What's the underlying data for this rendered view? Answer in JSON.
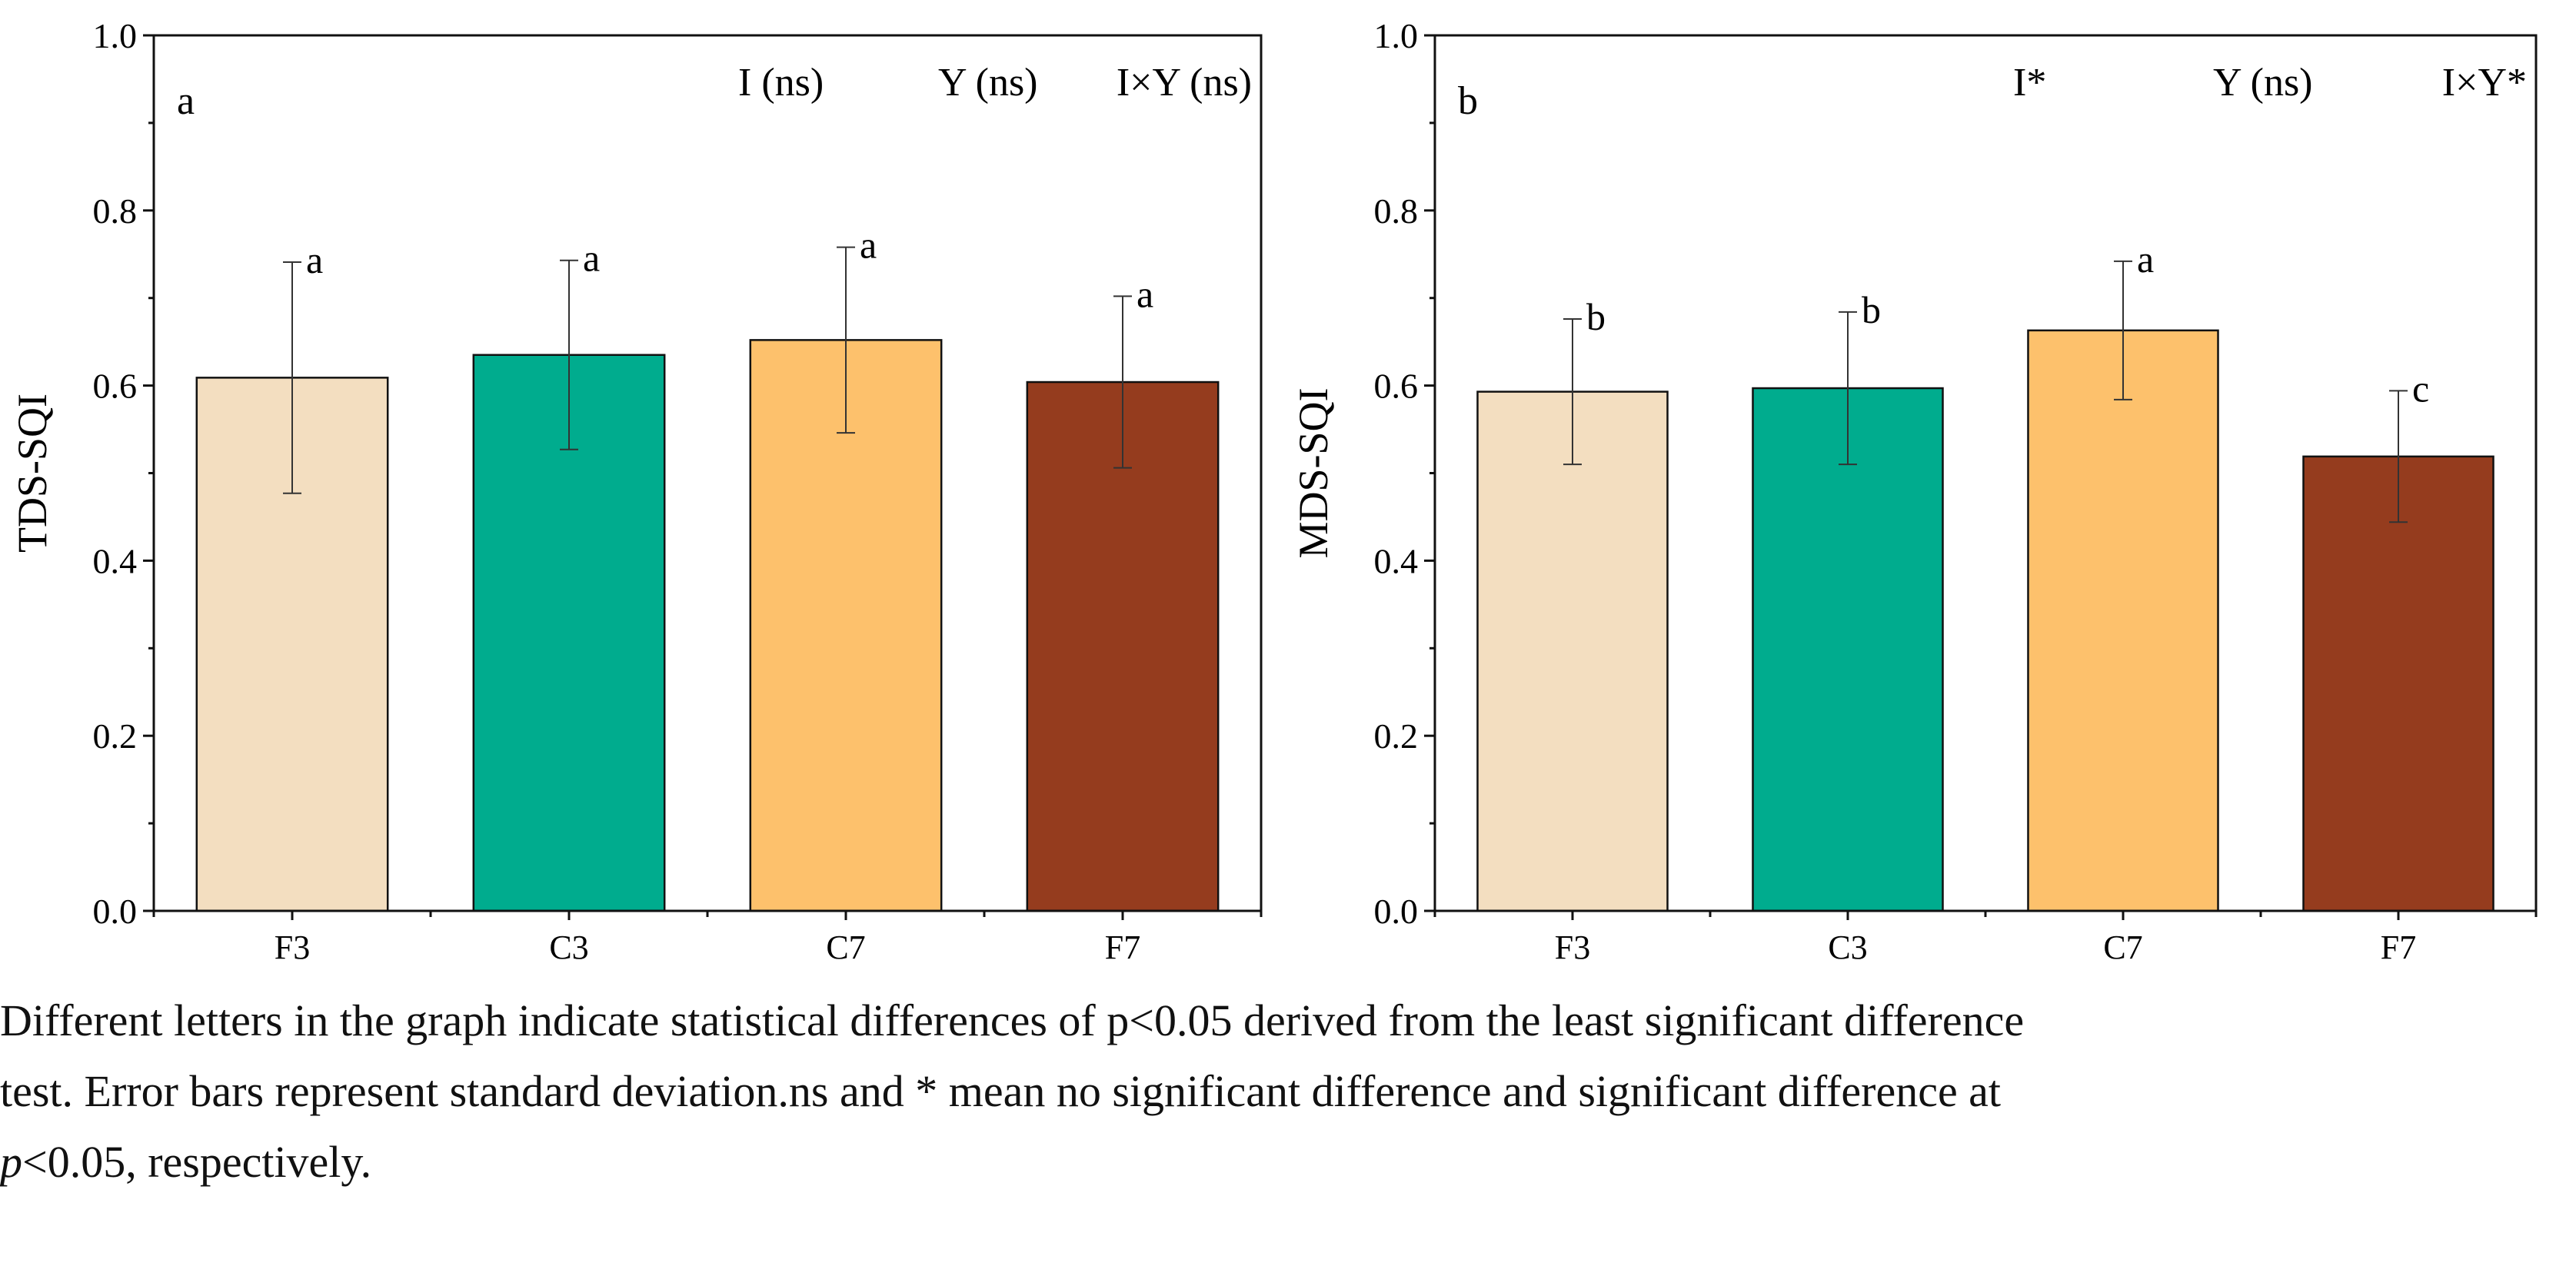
{
  "chart_data": [
    {
      "type": "bar",
      "panel_label": "a",
      "ylabel": "TDS-SQI",
      "xlabel": "",
      "categories": [
        "F3",
        "C3",
        "C7",
        "F7"
      ],
      "values": [
        0.609,
        0.635,
        0.652,
        0.604
      ],
      "error_sd": [
        0.132,
        0.108,
        0.106,
        0.098
      ],
      "significance_letters": [
        "a",
        "a",
        "a",
        "a"
      ],
      "effects": [
        "I (ns)",
        "Y (ns)",
        "I×Y (ns)"
      ],
      "colors": [
        "#F3DEC0",
        "#00AC8E",
        "#FDC16C",
        "#953C1E"
      ],
      "ylim": [
        0,
        1.0
      ],
      "yticks": [
        "0.0",
        "0.2",
        "0.4",
        "0.6",
        "0.8",
        "1.0"
      ],
      "grid": false
    },
    {
      "type": "bar",
      "panel_label": "b",
      "ylabel": "MDS-SQI",
      "xlabel": "",
      "categories": [
        "F3",
        "C3",
        "C7",
        "F7"
      ],
      "values": [
        0.593,
        0.597,
        0.663,
        0.519
      ],
      "error_sd": [
        0.083,
        0.087,
        0.079,
        0.075
      ],
      "significance_letters": [
        "b",
        "b",
        "a",
        "c"
      ],
      "effects": [
        "I*",
        "Y (ns)",
        "I×Y*"
      ],
      "colors": [
        "#F3DEC0",
        "#00AC8E",
        "#FDC16C",
        "#953C1E"
      ],
      "ylim": [
        0,
        1.0
      ],
      "yticks": [
        "0.0",
        "0.2",
        "0.4",
        "0.6",
        "0.8",
        "1.0"
      ],
      "grid": false
    }
  ],
  "caption": {
    "line1": "Different letters in the graph indicate statistical differences of p<0.05 derived from the least significant difference",
    "line2": "test. Error bars represent standard deviation.ns and * mean no significant difference and significant difference at",
    "line3_italic": "p",
    "line3_rest": "<0.05, respectively."
  }
}
